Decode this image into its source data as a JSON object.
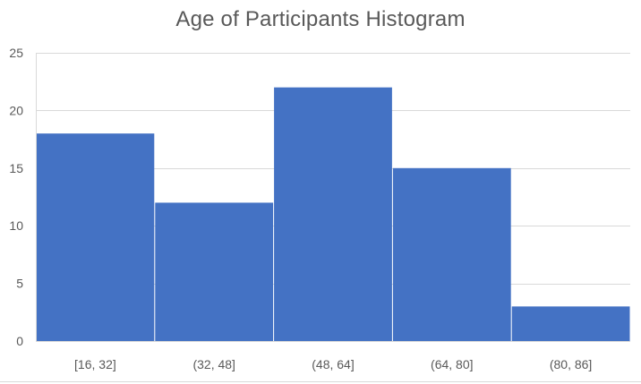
{
  "chart_data": {
    "type": "bar",
    "title": "Age of Participants Histogram",
    "categories": [
      "[16, 32]",
      "(32, 48]",
      "(48, 64]",
      "(64, 80]",
      "(80, 86]"
    ],
    "values": [
      18,
      12,
      22,
      15,
      3
    ],
    "ylim": [
      0,
      25
    ],
    "yticks": [
      0,
      5,
      10,
      15,
      20,
      25
    ],
    "xlabel": "",
    "ylabel": "",
    "grid": true,
    "bar_color": "#4472C4",
    "gridline_color": "#d9d9d9",
    "text_color": "#595959"
  }
}
